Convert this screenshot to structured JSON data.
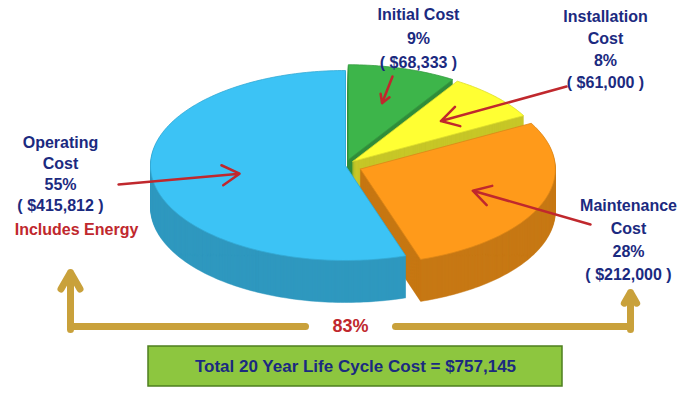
{
  "chart_data": {
    "type": "pie",
    "categories": [
      "Initial Cost",
      "Installation Cost",
      "Maintenance Cost",
      "Operating Cost"
    ],
    "values": [
      9,
      8,
      28,
      55
    ],
    "value_labels": [
      "9%",
      "8%",
      "28%",
      "55%"
    ],
    "amount_labels": [
      "( $68,333 )",
      "( $61,000 )",
      "( $212,000 )",
      "( $415,812 )"
    ],
    "colors": [
      "#3db54a",
      "#ffff33",
      "#ff9a1a",
      "#3cc3f5"
    ],
    "data_labels": true,
    "annotations": [
      "Includes Energy",
      "83%"
    ],
    "total_label": "Total 20 Year Life Cycle Cost = $757,145"
  }
}
